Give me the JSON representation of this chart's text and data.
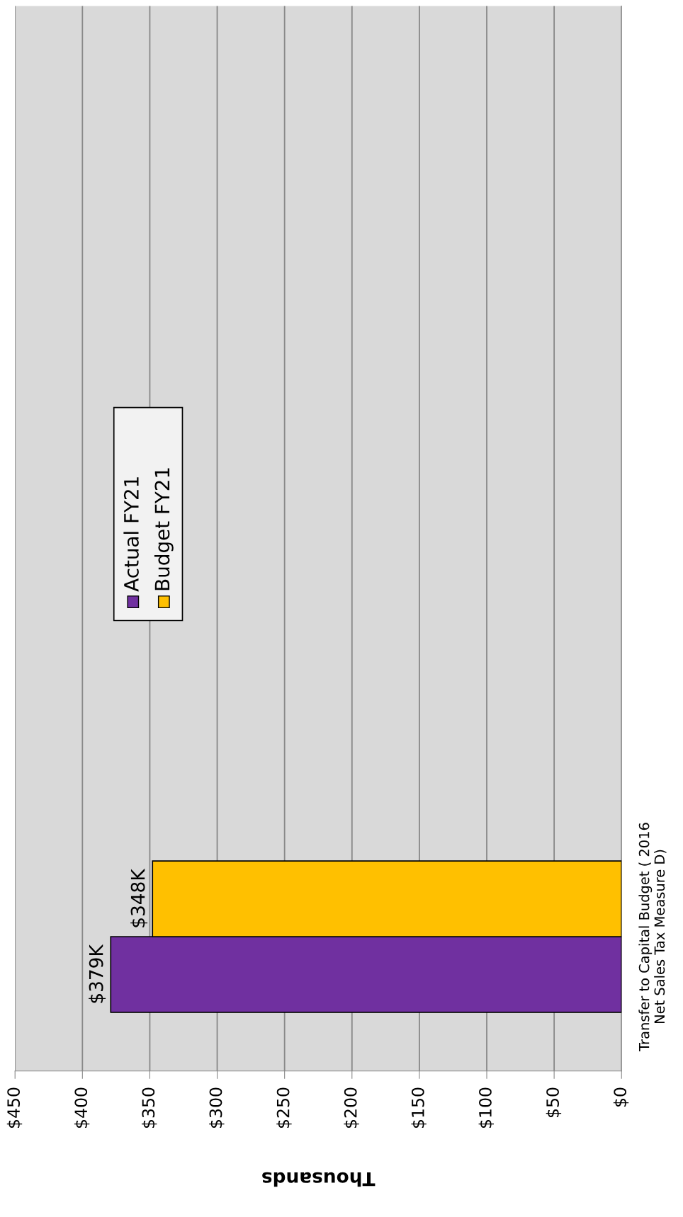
{
  "chart_data": {
    "type": "bar",
    "orientation": "horizontal",
    "xlabel": "Thousands",
    "categories": [
      "Transfer to Capital Budget ( 2016\nNet Sales Tax Measure D)"
    ],
    "series": [
      {
        "name": "Actual FY21",
        "color": "#7030a0",
        "values": [
          379
        ],
        "value_labels": [
          "$379K"
        ]
      },
      {
        "name": "Budget FY21",
        "color": "#ffc000",
        "values": [
          348
        ],
        "value_labels": [
          "$348K"
        ]
      }
    ],
    "xlim": [
      450,
      0
    ],
    "xticks": [
      {
        "value": 450,
        "label": "$450"
      },
      {
        "value": 400,
        "label": "$400"
      },
      {
        "value": 350,
        "label": "$350"
      },
      {
        "value": 300,
        "label": "$300"
      },
      {
        "value": 250,
        "label": "$250"
      },
      {
        "value": 200,
        "label": "$200"
      },
      {
        "value": 150,
        "label": "$150"
      },
      {
        "value": 100,
        "label": "$100"
      },
      {
        "value": 50,
        "label": "$50"
      },
      {
        "value": 0,
        "label": "$0"
      }
    ],
    "grid": "x",
    "legend": "top"
  }
}
